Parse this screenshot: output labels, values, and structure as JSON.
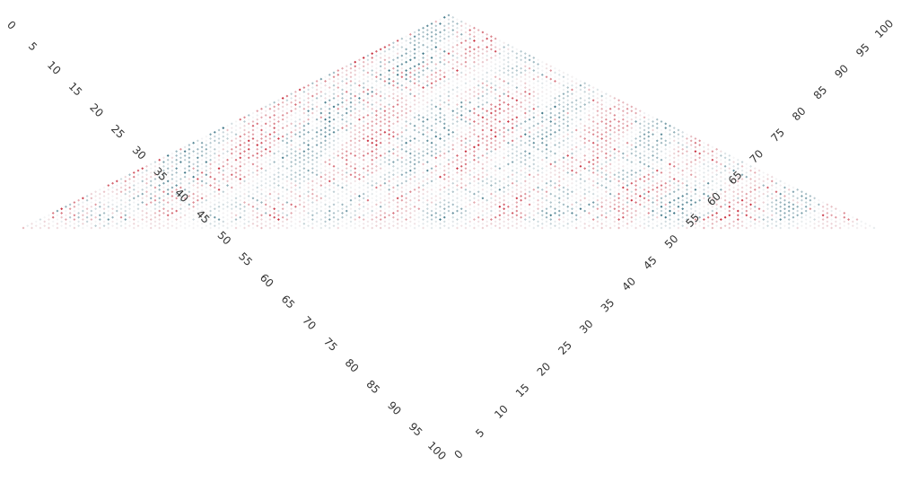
{
  "chart_data": {
    "type": "heatmap",
    "title": "",
    "xlabel": "",
    "ylabel": "",
    "variant": "triangular-correlation-matrix-rotated-45",
    "matrix_size": 101,
    "axis_range": [
      0,
      100
    ],
    "grid": false,
    "legend": "none",
    "value_range": [
      -1,
      1
    ],
    "colormap": {
      "negative": "#3d7586",
      "neutral": "#f4f4f5",
      "positive": "#c8303f"
    },
    "left_axis_ticks": [
      "0",
      "5",
      "10",
      "15",
      "20",
      "25",
      "30",
      "35",
      "40",
      "45",
      "50",
      "55",
      "60",
      "65",
      "70",
      "75",
      "80",
      "85",
      "90",
      "95",
      "100"
    ],
    "right_axis_ticks": [
      "0",
      "5",
      "10",
      "15",
      "20",
      "25",
      "30",
      "35",
      "40",
      "45",
      "50",
      "55",
      "60",
      "65",
      "70",
      "75",
      "80",
      "85",
      "90",
      "95",
      "100"
    ]
  }
}
